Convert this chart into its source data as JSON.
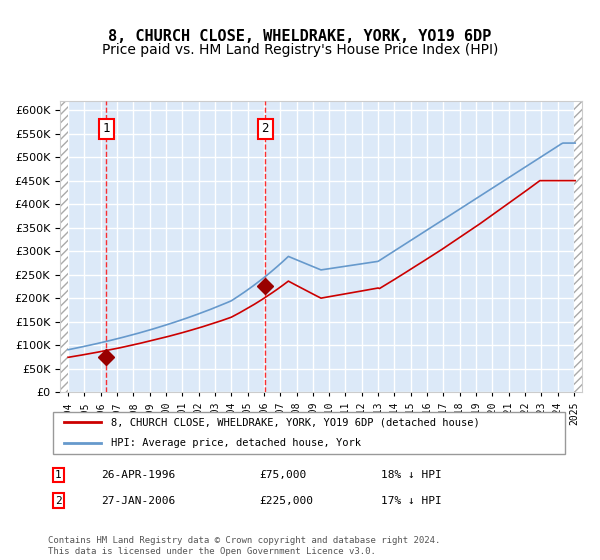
{
  "title": "8, CHURCH CLOSE, WHELDRAKE, YORK, YO19 6DP",
  "subtitle": "Price paid vs. HM Land Registry's House Price Index (HPI)",
  "legend_line1": "8, CHURCH CLOSE, WHELDRAKE, YORK, YO19 6DP (detached house)",
  "legend_line2": "HPI: Average price, detached house, York",
  "annotation1_date": "26-APR-1996",
  "annotation1_price": "£75,000",
  "annotation1_hpi": "18% ↓ HPI",
  "annotation2_date": "27-JAN-2006",
  "annotation2_price": "£225,000",
  "annotation2_hpi": "17% ↓ HPI",
  "footer": "Contains HM Land Registry data © Crown copyright and database right 2024.\nThis data is licensed under the Open Government Licence v3.0.",
  "sale1_x": 1996.32,
  "sale1_y": 75000,
  "sale2_x": 2006.07,
  "sale2_y": 225000,
  "vline1_x": 1996.32,
  "vline2_x": 2006.07,
  "plot_bg_color": "#dce9f8",
  "grid_color": "#ffffff",
  "hpi_line_color": "#6699cc",
  "price_line_color": "#cc0000",
  "sale_marker_color": "#990000",
  "title_fontsize": 11,
  "subtitle_fontsize": 10,
  "ylim": [
    0,
    620000
  ],
  "xlim_left": 1993.5,
  "xlim_right": 2025.5
}
